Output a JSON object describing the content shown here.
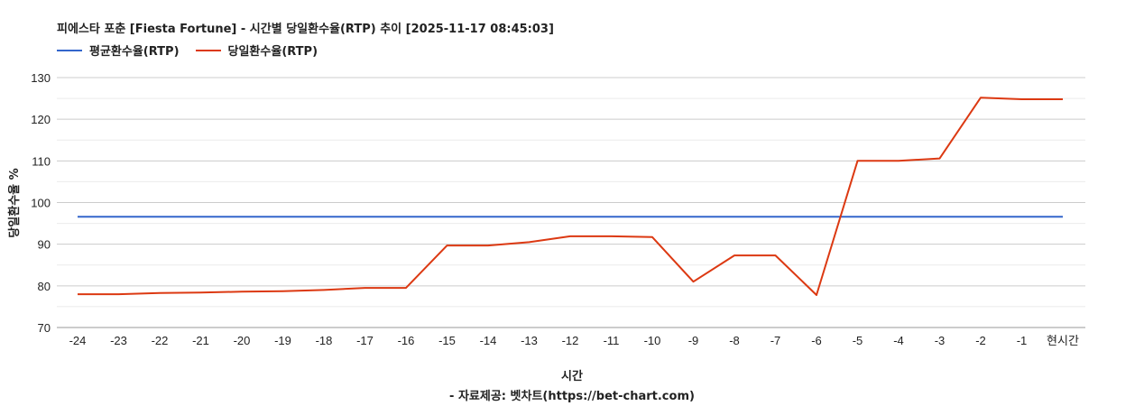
{
  "header": {
    "title": "피에스타 포춘 [Fiesta Fortune] - 시간별 당일환수율(RTP) 추이 [2025-11-17 08:45:03]"
  },
  "legend": [
    {
      "label": "평균환수율(RTP)",
      "color": "#3366cc"
    },
    {
      "label": "당일환수율(RTP)",
      "color": "#dc3912"
    }
  ],
  "axes": {
    "ylabel": "당일환수율 %",
    "xlabel": "시간",
    "source": "- 자료제공: 벳차트(https://bet-chart.com)"
  },
  "chart_data": {
    "type": "line",
    "title": "피에스타 포춘 [Fiesta Fortune] - 시간별 당일환수율(RTP) 추이 [2025-11-17 08:45:03]",
    "xlabel": "시간",
    "ylabel": "당일환수율 %",
    "ylim": [
      70,
      130
    ],
    "yticks": [
      70,
      80,
      90,
      100,
      110,
      120,
      130
    ],
    "grid": true,
    "legend_position": "top",
    "categories": [
      "-24",
      "-23",
      "-22",
      "-21",
      "-20",
      "-19",
      "-18",
      "-17",
      "-16",
      "-15",
      "-14",
      "-13",
      "-12",
      "-11",
      "-10",
      "-9",
      "-8",
      "-7",
      "-6",
      "-5",
      "-4",
      "-3",
      "-2",
      "-1",
      "현시간"
    ],
    "series": [
      {
        "name": "평균환수율(RTP)",
        "color": "#3366cc",
        "values": [
          96.6,
          96.6,
          96.6,
          96.6,
          96.6,
          96.6,
          96.6,
          96.6,
          96.6,
          96.6,
          96.6,
          96.6,
          96.6,
          96.6,
          96.6,
          96.6,
          96.6,
          96.6,
          96.6,
          96.6,
          96.6,
          96.6,
          96.6,
          96.6,
          96.6
        ]
      },
      {
        "name": "당일환수율(RTP)",
        "color": "#dc3912",
        "values": [
          78.0,
          78.0,
          78.3,
          78.4,
          78.6,
          78.7,
          79.0,
          79.5,
          79.5,
          89.7,
          89.7,
          90.5,
          91.9,
          91.9,
          91.7,
          81.0,
          87.3,
          87.3,
          77.8,
          110.0,
          110.0,
          110.6,
          125.2,
          124.8,
          124.8
        ]
      }
    ]
  }
}
